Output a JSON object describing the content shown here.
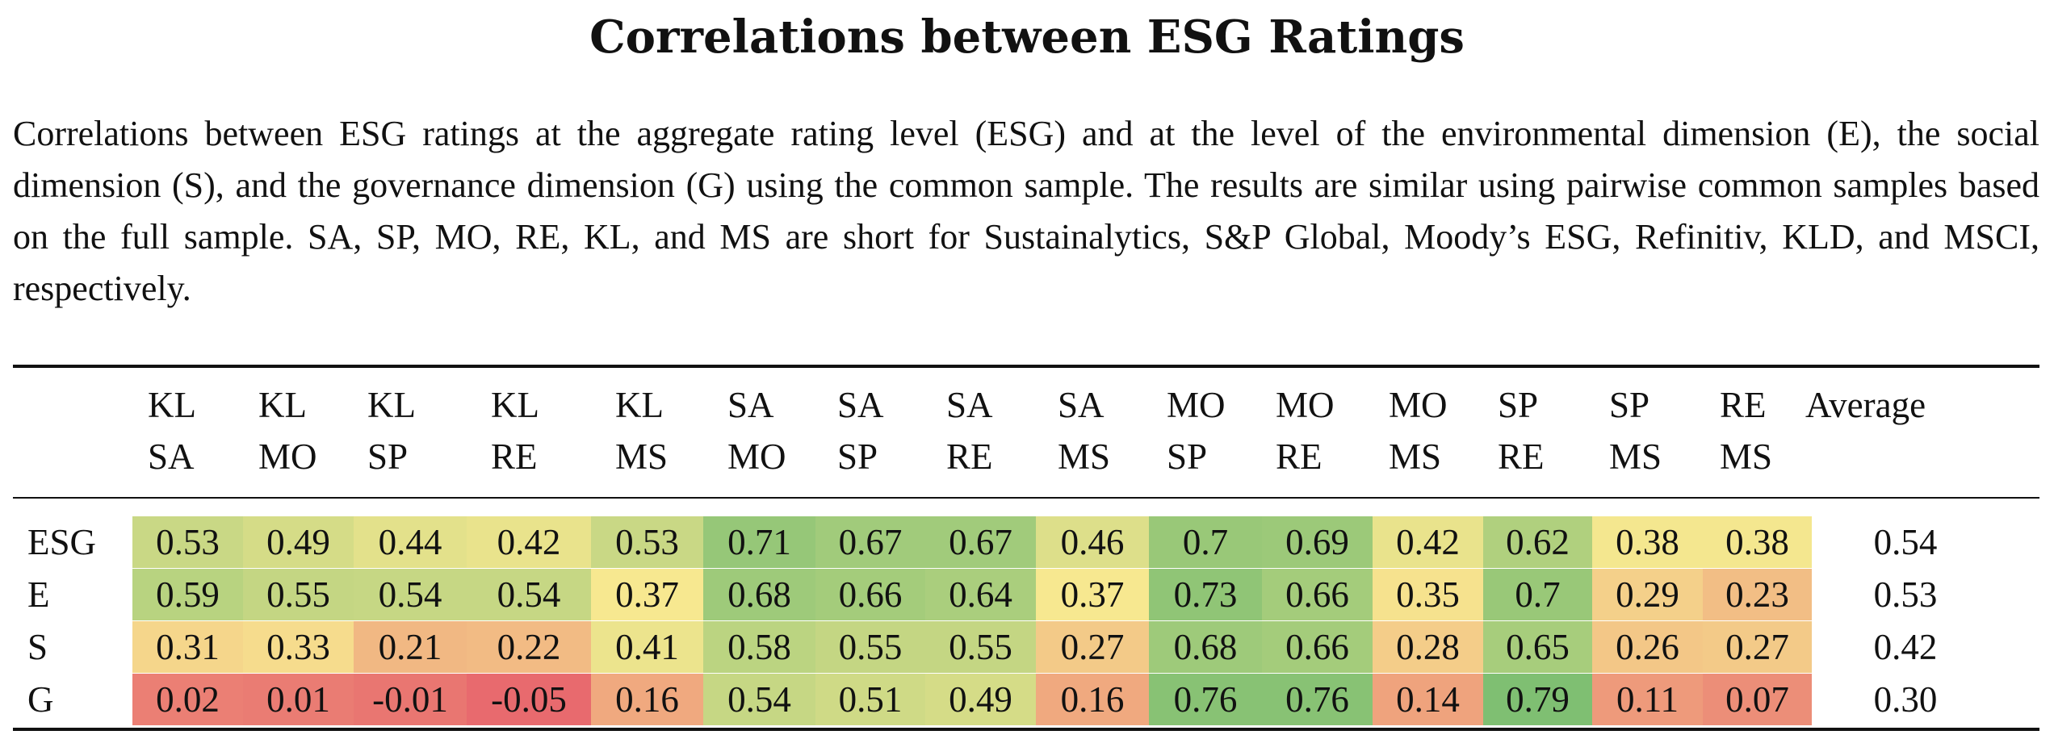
{
  "title": "Correlations between ESG Ratings",
  "caption": "Correlations between ESG ratings at the aggregate rating level (ESG) and at the level of the environmental dimension (E), the social dimension (S), and the governance dimension (G) using the common sample.  The results are similar using pairwise common samples based on the full sample.  SA, SP, MO, RE, KL, and MS are short for Sustainalytics, S&P Global, Moody’s ESG, Refinitiv, KLD, and MSCI, respectively.",
  "table": {
    "columns": [
      {
        "top": "KL",
        "bottom": "SA"
      },
      {
        "top": "KL",
        "bottom": "MO"
      },
      {
        "top": "KL",
        "bottom": "SP"
      },
      {
        "top": "KL",
        "bottom": "RE"
      },
      {
        "top": "KL",
        "bottom": "MS"
      },
      {
        "top": "SA",
        "bottom": "MO"
      },
      {
        "top": "SA",
        "bottom": "SP"
      },
      {
        "top": "SA",
        "bottom": "RE"
      },
      {
        "top": "SA",
        "bottom": "MS"
      },
      {
        "top": "MO",
        "bottom": "SP"
      },
      {
        "top": "MO",
        "bottom": "RE"
      },
      {
        "top": "MO",
        "bottom": "MS"
      },
      {
        "top": "SP",
        "bottom": "RE"
      },
      {
        "top": "SP",
        "bottom": "MS"
      },
      {
        "top": "RE",
        "bottom": "MS"
      }
    ],
    "average_header": "Average",
    "rows": [
      {
        "label": "ESG",
        "values": [
          "0.53",
          "0.49",
          "0.44",
          "0.42",
          "0.53",
          "0.71",
          "0.67",
          "0.67",
          "0.46",
          "0.7",
          "0.69",
          "0.42",
          "0.62",
          "0.38",
          "0.38"
        ],
        "average": "0.54"
      },
      {
        "label": "E",
        "values": [
          "0.59",
          "0.55",
          "0.54",
          "0.54",
          "0.37",
          "0.68",
          "0.66",
          "0.64",
          "0.37",
          "0.73",
          "0.66",
          "0.35",
          "0.7",
          "0.29",
          "0.23"
        ],
        "average": "0.53"
      },
      {
        "label": "S",
        "values": [
          "0.31",
          "0.33",
          "0.21",
          "0.22",
          "0.41",
          "0.58",
          "0.55",
          "0.55",
          "0.27",
          "0.68",
          "0.66",
          "0.28",
          "0.65",
          "0.26",
          "0.27"
        ],
        "average": "0.42"
      },
      {
        "label": "G",
        "values": [
          "0.02",
          "0.01",
          "-0.01",
          "-0.05",
          "0.16",
          "0.54",
          "0.51",
          "0.49",
          "0.16",
          "0.76",
          "0.76",
          "0.14",
          "0.79",
          "0.11",
          "0.07"
        ],
        "average": "0.30"
      }
    ]
  },
  "chart_data": {
    "type": "heatmap",
    "title": "Correlations between ESG Ratings",
    "x": [
      "KL SA",
      "KL MO",
      "KL SP",
      "KL RE",
      "KL MS",
      "SA MO",
      "SA SP",
      "SA RE",
      "SA MS",
      "MO SP",
      "MO RE",
      "MO MS",
      "SP RE",
      "SP MS",
      "RE MS"
    ],
    "y": [
      "ESG",
      "E",
      "S",
      "G"
    ],
    "values": [
      [
        0.53,
        0.49,
        0.44,
        0.42,
        0.53,
        0.71,
        0.67,
        0.67,
        0.46,
        0.7,
        0.69,
        0.42,
        0.62,
        0.38,
        0.38
      ],
      [
        0.59,
        0.55,
        0.54,
        0.54,
        0.37,
        0.68,
        0.66,
        0.64,
        0.37,
        0.73,
        0.66,
        0.35,
        0.7,
        0.29,
        0.23
      ],
      [
        0.31,
        0.33,
        0.21,
        0.22,
        0.41,
        0.58,
        0.55,
        0.55,
        0.27,
        0.68,
        0.66,
        0.28,
        0.65,
        0.26,
        0.27
      ],
      [
        0.02,
        0.01,
        -0.01,
        -0.05,
        0.16,
        0.54,
        0.51,
        0.49,
        0.16,
        0.76,
        0.76,
        0.14,
        0.79,
        0.11,
        0.07
      ]
    ],
    "averages": [
      0.54,
      0.53,
      0.42,
      0.3
    ],
    "colorscale": [
      "#e86a6e",
      "#f7e890",
      "#7fbf72"
    ],
    "color_range": [
      -0.05,
      0.79
    ]
  }
}
